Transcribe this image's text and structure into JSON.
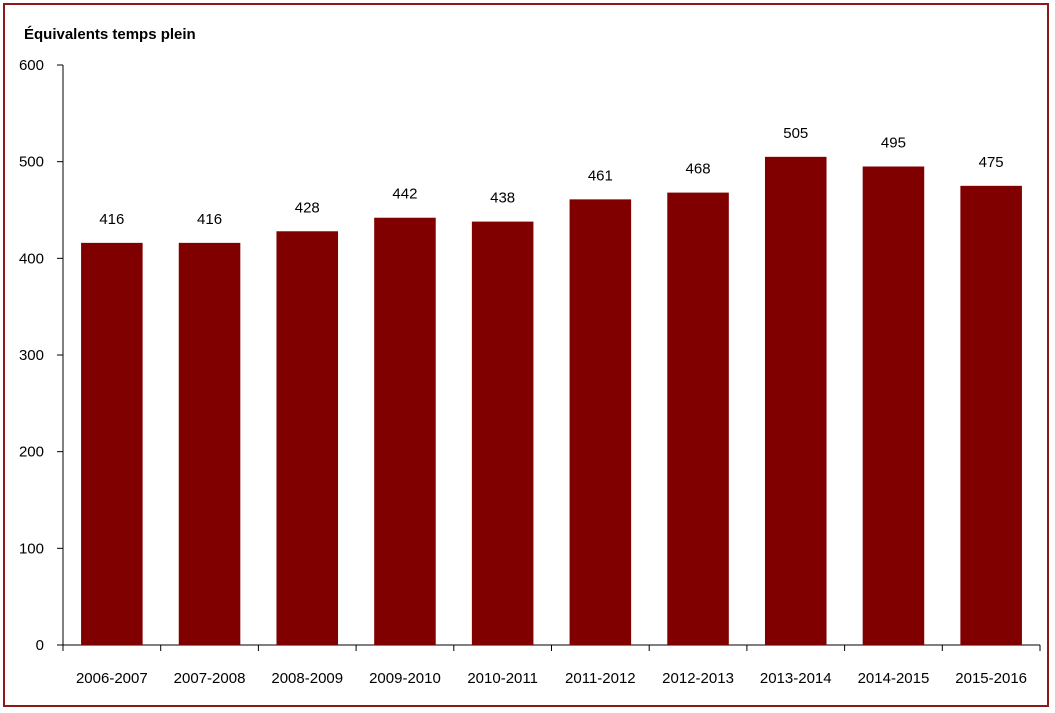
{
  "chart_data": {
    "type": "bar",
    "ylabel": "Équivalents temps plein",
    "xlabel": "",
    "categories": [
      "2006-2007",
      "2007-2008",
      "2008-2009",
      "2009-2010",
      "2010-2011",
      "2011-2012",
      "2012-2013",
      "2013-2014",
      "2014-2015",
      "2015-2016"
    ],
    "values": [
      416,
      416,
      428,
      442,
      438,
      461,
      468,
      505,
      495,
      475
    ],
    "data_labels": [
      "416",
      "416",
      "428",
      "442",
      "438",
      "461",
      "468",
      "505",
      "495",
      "475"
    ],
    "ylim": [
      0,
      600
    ],
    "yticks": [
      0,
      100,
      200,
      300,
      400,
      500,
      600
    ],
    "ytick_labels": [
      "0",
      "100",
      "200",
      "300",
      "400",
      "500",
      "600"
    ],
    "grid": false,
    "legend": "none",
    "bar_color": "#800000",
    "frame_color": "#8b1a1a"
  }
}
